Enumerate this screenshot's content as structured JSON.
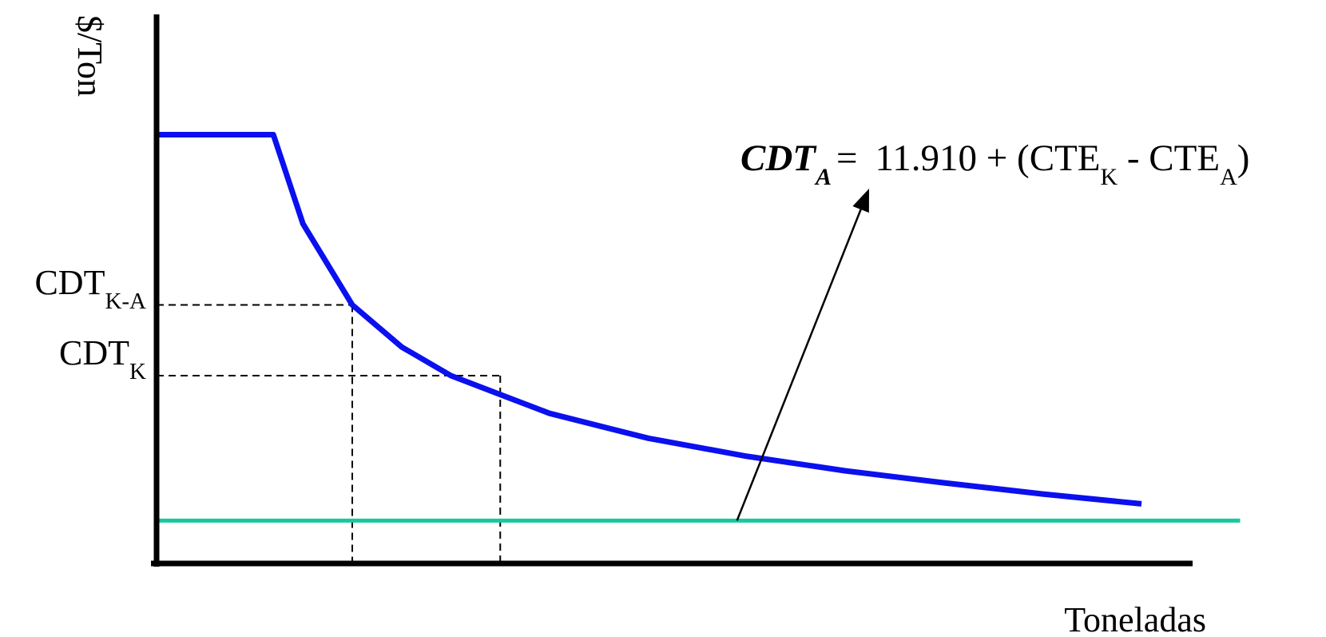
{
  "chart_data": {
    "type": "line",
    "xlabel": "Toneladas",
    "ylabel": "$/Ton",
    "xticks": [],
    "yticks": [],
    "grid": false,
    "legend": "none",
    "series": [
      {
        "x": [
          0,
          1.2,
          1.5,
          2.0,
          2.5,
          3.0,
          4.0,
          5.0,
          6.0,
          7.0,
          8.0,
          9.0,
          10.0
        ],
        "values": [
          100,
          100,
          79.2,
          60.3,
          50.5,
          43.8,
          35.0,
          29.2,
          25.0,
          21.6,
          18.8,
          16.2,
          13.9
        ],
        "color": "#0b10ee"
      },
      {
        "x": [
          0,
          11.0
        ],
        "values": [
          10,
          10
        ],
        "color": "#19c79e"
      }
    ],
    "reference_levels": [
      {
        "label_main": "CDT",
        "label_sub": "K-A",
        "x": 2.0,
        "y": 60.3
      },
      {
        "label_main": "CDT",
        "label_sub": "K",
        "x": 3.5,
        "y": 43.8
      }
    ],
    "annotation": {
      "lhs_main": "CDT",
      "lhs_sub": "A",
      "equals": "=",
      "rhs_part1": "11.910 + (CTE",
      "rhs_sub1": "K",
      "rhs_part2": " - CTE",
      "rhs_sub2": "A",
      "rhs_close": ")",
      "arrow_from": [
        5.9,
        10
      ]
    },
    "colors": {
      "axis": "#000000",
      "curve": "#0b10ee",
      "baseline": "#19c79e"
    }
  }
}
